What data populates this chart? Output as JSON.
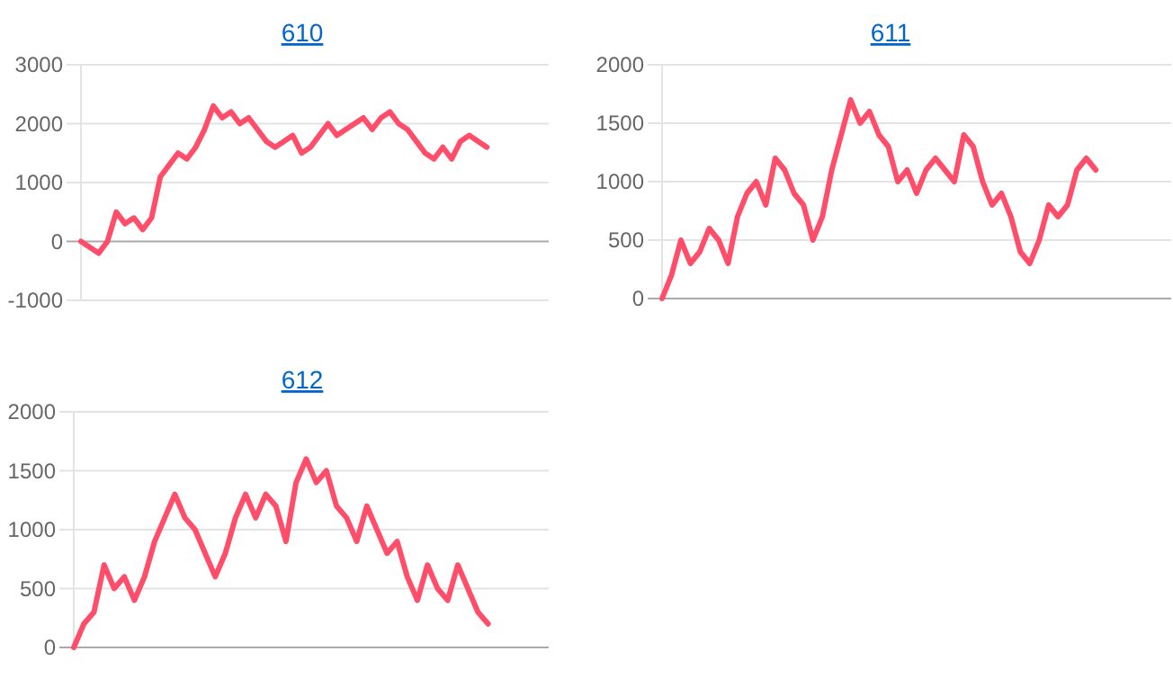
{
  "chart_data": [
    {
      "type": "line",
      "title": "610",
      "categories": [
        null,
        null,
        null,
        null,
        null,
        null,
        null,
        null,
        null,
        null,
        null,
        null,
        null,
        null,
        null,
        null,
        null,
        null,
        null,
        null,
        null,
        null,
        null,
        null,
        null,
        null,
        null,
        null,
        null,
        null,
        null,
        null,
        null,
        null,
        null,
        null,
        null,
        null,
        null,
        null,
        null,
        null,
        null,
        null,
        null,
        null,
        null,
        null,
        null,
        null,
        null,
        null,
        null,
        null
      ],
      "series": [
        {
          "color": "#ff4d6a",
          "values": [
            0,
            -100,
            -200,
            0,
            500,
            300,
            400,
            200,
            400,
            1100,
            1300,
            1500,
            1400,
            1600,
            1900,
            2300,
            2100,
            2200,
            2000,
            2100,
            1900,
            1700,
            1600,
            1700,
            1800,
            1500,
            1600,
            1800,
            2000,
            1800,
            1900,
            2000,
            2100,
            1900,
            2100,
            2200,
            2000,
            1900,
            1700,
            1500,
            1400,
            1600,
            1400,
            1700,
            1800,
            1700,
            1600,
            null,
            null,
            null,
            null,
            null,
            null,
            null
          ]
        }
      ],
      "ylim": [
        -1000,
        3000
      ],
      "yticks": [
        -1000,
        0,
        1000,
        2000,
        3000
      ],
      "grid": "y",
      "tick_labels": "y"
    },
    {
      "type": "line",
      "title": "611",
      "categories": [
        null,
        null,
        null,
        null,
        null,
        null,
        null,
        null,
        null,
        null,
        null,
        null,
        null,
        null,
        null,
        null,
        null,
        null,
        null,
        null,
        null,
        null,
        null,
        null,
        null,
        null,
        null,
        null,
        null,
        null,
        null,
        null,
        null,
        null,
        null,
        null,
        null,
        null,
        null,
        null,
        null,
        null,
        null,
        null,
        null,
        null,
        null,
        null,
        null,
        null,
        null,
        null,
        null,
        null,
        null
      ],
      "series": [
        {
          "color": "#ff4d6a",
          "values": [
            0,
            200,
            500,
            300,
            400,
            600,
            500,
            300,
            700,
            900,
            1000,
            800,
            1200,
            1100,
            900,
            800,
            500,
            700,
            1100,
            1400,
            1700,
            1500,
            1600,
            1400,
            1300,
            1000,
            1100,
            900,
            1100,
            1200,
            1100,
            1000,
            1400,
            1300,
            1000,
            800,
            900,
            700,
            400,
            300,
            500,
            800,
            700,
            800,
            1100,
            1200,
            1100,
            null,
            null,
            null,
            null,
            null,
            null,
            null,
            null
          ]
        }
      ],
      "ylim": [
        0,
        2000
      ],
      "yticks": [
        0,
        500,
        1000,
        1500,
        2000
      ],
      "grid": "y",
      "tick_labels": "y"
    },
    {
      "type": "line",
      "title": "612",
      "categories": [
        null,
        null,
        null,
        null,
        null,
        null,
        null,
        null,
        null,
        null,
        null,
        null,
        null,
        null,
        null,
        null,
        null,
        null,
        null,
        null,
        null,
        null,
        null,
        null,
        null,
        null,
        null,
        null,
        null,
        null,
        null,
        null,
        null,
        null,
        null,
        null,
        null,
        null,
        null,
        null,
        null,
        null,
        null,
        null,
        null,
        null,
        null,
        null
      ],
      "series": [
        {
          "color": "#ff4d6a",
          "values": [
            0,
            200,
            300,
            700,
            500,
            600,
            400,
            600,
            900,
            1100,
            1300,
            1100,
            1000,
            800,
            600,
            800,
            1100,
            1300,
            1100,
            1300,
            1200,
            900,
            1400,
            1600,
            1400,
            1500,
            1200,
            1100,
            900,
            1200,
            1000,
            800,
            900,
            600,
            400,
            700,
            500,
            400,
            700,
            500,
            300,
            200,
            null,
            null,
            null,
            null,
            null,
            null
          ]
        }
      ],
      "ylim": [
        0,
        2000
      ],
      "yticks": [
        0,
        500,
        1000,
        1500,
        2000
      ],
      "grid": "y",
      "tick_labels": "y"
    }
  ]
}
